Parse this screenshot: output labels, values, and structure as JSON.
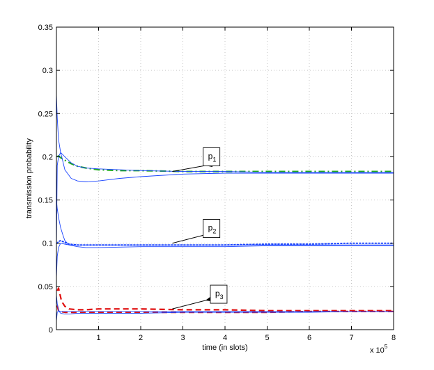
{
  "chart_data": {
    "type": "line",
    "xlabel": "time (in slots)",
    "ylabel": "transmission probability",
    "x_multiplier": "x 10",
    "x_multiplier_exp": "5",
    "xlim": [
      0,
      8
    ],
    "ylim": [
      0,
      0.35
    ],
    "xticks": [
      1,
      2,
      3,
      4,
      5,
      6,
      7,
      8
    ],
    "yticks": [
      0,
      0.05,
      0.1,
      0.15,
      0.2,
      0.25,
      0.3,
      0.35
    ],
    "grid": true,
    "series": [
      {
        "color": "#22aa22",
        "style": "dashdot",
        "width": 2.2,
        "x": [
          0.02,
          0.05,
          0.1,
          0.2,
          0.35,
          0.5,
          0.7,
          1.0,
          1.5,
          2,
          3,
          4,
          5,
          6,
          7,
          8
        ],
        "y": [
          0.2,
          0.201,
          0.199,
          0.196,
          0.192,
          0.189,
          0.187,
          0.185,
          0.184,
          0.184,
          0.183,
          0.183,
          0.183,
          0.183,
          0.183,
          0.183
        ]
      },
      {
        "color": "#1a44ff",
        "style": "solid",
        "width": 0.9,
        "x": [
          0.0,
          0.02,
          0.05,
          0.1,
          0.15,
          0.2,
          0.35,
          0.5,
          0.7,
          1.0,
          1.5,
          2,
          3,
          4,
          5,
          6,
          7,
          8
        ],
        "y": [
          0.272,
          0.245,
          0.22,
          0.205,
          0.195,
          0.185,
          0.175,
          0.172,
          0.171,
          0.172,
          0.175,
          0.177,
          0.18,
          0.181,
          0.181,
          0.181,
          0.181,
          0.181
        ]
      },
      {
        "color": "#1a44ff",
        "style": "solid",
        "width": 0.9,
        "x": [
          0.0,
          0.02,
          0.05,
          0.1,
          0.2,
          0.35,
          0.5,
          0.7,
          1.0,
          2,
          3,
          4,
          5,
          6,
          7,
          8
        ],
        "y": [
          0.095,
          0.19,
          0.2,
          0.205,
          0.2,
          0.193,
          0.189,
          0.187,
          0.186,
          0.184,
          0.183,
          0.183,
          0.182,
          0.182,
          0.182,
          0.182
        ]
      },
      {
        "color": "#1a44ff",
        "style": "dotted",
        "width": 2.0,
        "x": [
          0.02,
          0.05,
          0.1,
          0.2,
          0.3,
          0.5,
          0.7,
          1.0,
          2,
          3,
          4,
          5,
          6,
          7,
          8
        ],
        "y": [
          0.1,
          0.102,
          0.103,
          0.101,
          0.099,
          0.098,
          0.098,
          0.098,
          0.098,
          0.098,
          0.098,
          0.099,
          0.099,
          0.1,
          0.1
        ]
      },
      {
        "color": "#1a44ff",
        "style": "solid",
        "width": 0.9,
        "x": [
          0.0,
          0.02,
          0.05,
          0.1,
          0.15,
          0.2,
          0.3,
          0.5,
          0.7,
          1.0,
          2,
          3,
          4,
          5,
          6,
          7,
          8
        ],
        "y": [
          0.15,
          0.14,
          0.13,
          0.118,
          0.11,
          0.103,
          0.098,
          0.096,
          0.095,
          0.095,
          0.096,
          0.096,
          0.096,
          0.097,
          0.097,
          0.097,
          0.097
        ]
      },
      {
        "color": "#1a44ff",
        "style": "solid",
        "width": 0.9,
        "x": [
          0.0,
          0.02,
          0.05,
          0.1,
          0.2,
          0.3,
          0.5,
          0.7,
          1.0,
          2,
          3,
          4,
          5,
          6,
          7,
          8
        ],
        "y": [
          0.06,
          0.085,
          0.095,
          0.1,
          0.099,
          0.098,
          0.098,
          0.098,
          0.098,
          0.098,
          0.098,
          0.098,
          0.098,
          0.098,
          0.098,
          0.098
        ]
      },
      {
        "color": "#e01010",
        "style": "dashed",
        "width": 2.2,
        "x": [
          0.02,
          0.05,
          0.08,
          0.12,
          0.2,
          0.3,
          0.5,
          0.7,
          1.0,
          1.5,
          2,
          3,
          4,
          5,
          6,
          7,
          8
        ],
        "y": [
          0.045,
          0.048,
          0.042,
          0.033,
          0.027,
          0.024,
          0.023,
          0.023,
          0.024,
          0.024,
          0.024,
          0.023,
          0.023,
          0.022,
          0.022,
          0.022,
          0.022
        ]
      },
      {
        "color": "#e01010",
        "style": "dashed",
        "width": 2.2,
        "x": [
          0.02,
          0.05,
          0.1,
          0.2,
          0.3,
          0.5,
          1.0,
          2,
          3,
          4,
          5,
          6,
          7,
          8
        ],
        "y": [
          0.028,
          0.022,
          0.021,
          0.02,
          0.02,
          0.02,
          0.02,
          0.02,
          0.02,
          0.02,
          0.02,
          0.021,
          0.021,
          0.021
        ]
      },
      {
        "color": "#1a44ff",
        "style": "solid",
        "width": 0.9,
        "x": [
          0.0,
          0.02,
          0.05,
          0.1,
          0.2,
          0.3,
          0.5,
          1.0,
          2,
          3,
          4,
          5,
          6,
          7,
          8
        ],
        "y": [
          0.04,
          0.03,
          0.022,
          0.019,
          0.018,
          0.018,
          0.019,
          0.019,
          0.019,
          0.02,
          0.02,
          0.02,
          0.02,
          0.021,
          0.021
        ]
      },
      {
        "color": "#1a44ff",
        "style": "solid",
        "width": 0.9,
        "x": [
          0.0,
          0.02,
          0.05,
          0.1,
          0.2,
          0.5,
          1.0,
          2,
          3,
          4,
          5,
          6,
          7,
          8
        ],
        "y": [
          0.01,
          0.02,
          0.022,
          0.021,
          0.021,
          0.021,
          0.021,
          0.021,
          0.021,
          0.021,
          0.021,
          0.021,
          0.021,
          0.021
        ]
      }
    ],
    "annotations": [
      {
        "label": "p",
        "subscript": "1",
        "arrow_from": [
          3.55,
          0.19
        ],
        "arrow_to": [
          2.75,
          0.183
        ],
        "box_at": [
          3.68,
          0.2
        ]
      },
      {
        "label": "p",
        "subscript": "2",
        "arrow_from": [
          3.55,
          0.11
        ],
        "arrow_to": [
          2.75,
          0.1
        ],
        "box_at": [
          3.68,
          0.117
        ]
      },
      {
        "label": "p",
        "subscript": "3",
        "arrow_from": [
          3.55,
          0.034
        ],
        "arrow_to": [
          2.75,
          0.024
        ],
        "box_at": [
          3.85,
          0.041
        ]
      }
    ]
  }
}
